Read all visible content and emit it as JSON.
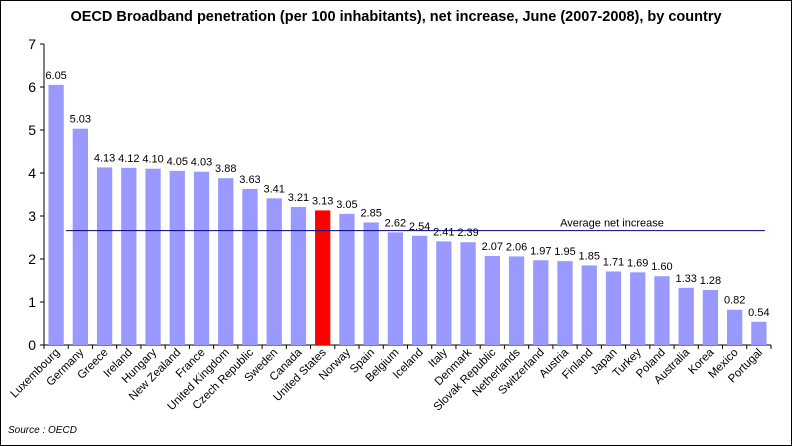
{
  "title": "OECD Broadband penetration (per 100 inhabitants), net increase, June (2007-2008), by country",
  "source": "Source : OECD",
  "chart_data": {
    "type": "bar",
    "title": "OECD Broadband penetration (per 100 inhabitants), net increase, June (2007-2008), by country",
    "xlabel": "",
    "ylabel": "",
    "ylim": [
      0,
      7
    ],
    "yticks": [
      "0",
      "1",
      "2",
      "3",
      "4",
      "5",
      "6",
      "7"
    ],
    "categories": [
      "Luxembourg",
      "Germany",
      "Greece",
      "Ireland",
      "Hungary",
      "New Zealand",
      "France",
      "United Kingdom",
      "Czech Republic",
      "Sweden",
      "Canada",
      "United States",
      "Norway",
      "Spain",
      "Belgium",
      "Iceland",
      "Italy",
      "Denmark",
      "Slovak Republic",
      "Netherlands",
      "Switzerland",
      "Austria",
      "Finland",
      "Japan",
      "Turkey",
      "Poland",
      "Australia",
      "Korea",
      "Mexico",
      "Portugal"
    ],
    "values": [
      6.05,
      5.03,
      4.13,
      4.12,
      4.1,
      4.05,
      4.03,
      3.88,
      3.63,
      3.41,
      3.21,
      3.13,
      3.05,
      2.85,
      2.62,
      2.54,
      2.41,
      2.39,
      2.07,
      2.06,
      1.97,
      1.95,
      1.85,
      1.71,
      1.69,
      1.6,
      1.33,
      1.28,
      0.82,
      0.54
    ],
    "value_labels": [
      "6.05",
      "5.03",
      "4.13",
      "4.12",
      "4.10",
      "4.05",
      "4.03",
      "3.88",
      "3.63",
      "3.41",
      "3.21",
      "3.13",
      "3.05",
      "2.85",
      "2.62",
      "2.54",
      "2.41",
      "2.39",
      "2.07",
      "2.06",
      "1.97",
      "1.95",
      "1.85",
      "1.71",
      "1.69",
      "1.60",
      "1.33",
      "1.28",
      "0.82",
      "0.54"
    ],
    "highlight": "United States",
    "average": {
      "label": "Average net increase",
      "value": 2.66
    },
    "grid": false,
    "legend": "none",
    "colors": {
      "bar": "#9999ff",
      "highlight": "#ff0000",
      "average_line": "#000080",
      "axis": "#000000"
    }
  }
}
